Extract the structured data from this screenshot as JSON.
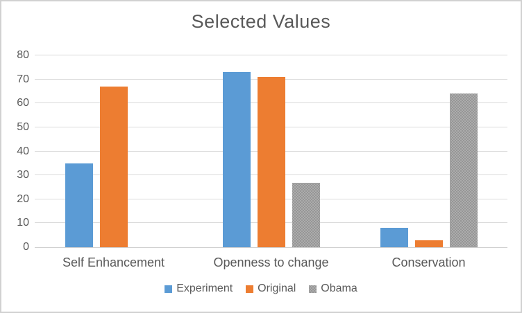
{
  "chart_data": {
    "type": "bar",
    "title": "Selected Values",
    "xlabel": "",
    "ylabel": "",
    "categories": [
      "Self Enhancement",
      "Openness to change",
      "Conservation"
    ],
    "series": [
      {
        "name": "Experiment",
        "color": "#5b9bd5",
        "values": [
          35,
          73,
          8
        ]
      },
      {
        "name": "Original",
        "color": "#ed7d31",
        "values": [
          67,
          71,
          3
        ]
      },
      {
        "name": "Obama",
        "color": "#a5a5a5",
        "values": [
          0,
          27,
          64
        ],
        "pattern": "dotted"
      }
    ],
    "ylim": [
      0,
      80
    ],
    "yticks": [
      0,
      10,
      20,
      30,
      40,
      50,
      60,
      70,
      80
    ],
    "grid": true,
    "legend_position": "bottom",
    "legend_labels": [
      "Experiment",
      "Original",
      "Obama"
    ]
  },
  "colors": {
    "text": "#595959",
    "gridline": "#d9d9d9",
    "axis": "#d0d0d0",
    "frame_border": "#d1d1d1",
    "background": "#ffffff"
  }
}
